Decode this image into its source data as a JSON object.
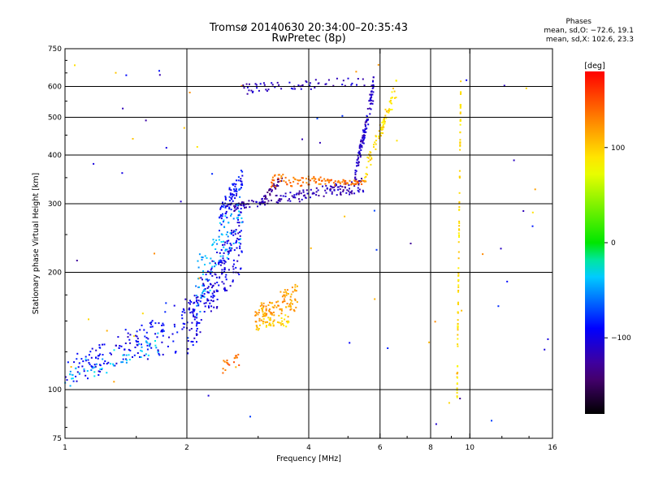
{
  "title_line1": "Tromsø 20140630 20:34:00–20:35:43",
  "title_line2": "RwPretec (8p)",
  "phase_box": {
    "title": "Phases",
    "line_o": "mean, sd,O: −72.6, 19.1",
    "line_x": "mean, sd,X: 102.6, 23.3"
  },
  "colorbar": {
    "unit": "[deg]",
    "min": -180,
    "max": 180,
    "ticks": [
      100,
      0,
      -100
    ],
    "tick_labels": [
      "100",
      "0",
      "−100"
    ]
  },
  "chart_data": {
    "type": "scatter",
    "xlabel": "Frequency [MHz]",
    "ylabel": "Stationary phase Virtual Height [km]",
    "xscale": "log",
    "yscale": "log",
    "xlim": [
      1,
      16
    ],
    "ylim": [
      75,
      750
    ],
    "x_ticks": [
      1,
      2,
      4,
      6,
      8,
      10,
      16
    ],
    "x_tick_labels": [
      "1",
      "2",
      "4",
      "6",
      "8",
      "10",
      "16"
    ],
    "y_ticks": [
      75,
      100,
      200,
      300,
      400,
      500,
      600,
      750
    ],
    "y_tick_labels": [
      "75",
      "100",
      "200",
      "300",
      "400",
      "500",
      "600",
      "750"
    ],
    "grid": true,
    "gridlines_x": [
      2,
      4,
      6,
      8,
      10
    ],
    "gridlines_y": [
      100,
      200,
      300,
      400,
      500,
      600
    ],
    "color_meaning": "phase in degrees",
    "clusters": [
      {
        "id": "o-low",
        "x_range": [
          1.0,
          2.0
        ],
        "y_start": [
          100,
          120
        ],
        "y_end": [
          125,
          175
        ],
        "phase": -95,
        "n": 160
      },
      {
        "id": "o-mid-a",
        "x_range": [
          2.0,
          2.75
        ],
        "y_start": [
          120,
          170
        ],
        "y_end": [
          200,
          300
        ],
        "phase": -100,
        "n": 240
      },
      {
        "id": "o-mid-b",
        "x_range": [
          2.4,
          2.75
        ],
        "y_start": [
          250,
          300
        ],
        "y_end": [
          330,
          375
        ],
        "phase": -90,
        "n": 80
      },
      {
        "id": "o-F-trace",
        "x_range": [
          2.5,
          5.5
        ],
        "y_start": [
          285,
          300
        ],
        "y_end": [
          320,
          350
        ],
        "phase": -118,
        "n": 170
      },
      {
        "id": "o-cusp",
        "x_range": [
          5.2,
          5.8
        ],
        "y_start": [
          330,
          370
        ],
        "y_end": [
          560,
          650
        ],
        "phase": -110,
        "n": 110
      },
      {
        "id": "o-top",
        "x_range": [
          2.7,
          5.7
        ],
        "y_start": [
          570,
          610
        ],
        "y_end": [
          600,
          640
        ],
        "phase": -112,
        "n": 60
      },
      {
        "id": "o-blob",
        "x_range": [
          3.1,
          3.45
        ],
        "y_start": [
          300,
          320
        ],
        "y_end": [
          340,
          360
        ],
        "phase": -135,
        "n": 35
      },
      {
        "id": "cyan-low",
        "x_range": [
          1.0,
          1.7
        ],
        "y_start": [
          100,
          115
        ],
        "y_end": [
          120,
          140
        ],
        "phase": -40,
        "n": 50
      },
      {
        "id": "cyan-patch",
        "x_range": [
          2.1,
          2.75
        ],
        "y_start": [
          150,
          220
        ],
        "y_end": [
          240,
          340
        ],
        "phase": -45,
        "n": 90
      },
      {
        "id": "x-blob-a",
        "x_range": [
          2.95,
          3.75
        ],
        "y_start": [
          145,
          165
        ],
        "y_end": [
          160,
          190
        ],
        "phase": 120,
        "n": 110
      },
      {
        "id": "x-blob-b",
        "x_range": [
          2.95,
          3.6
        ],
        "y_start": [
          140,
          150
        ],
        "y_end": [
          145,
          160
        ],
        "phase": 100,
        "n": 45
      },
      {
        "id": "x-lowblob",
        "x_range": [
          2.45,
          2.7
        ],
        "y_start": [
          110,
          120
        ],
        "y_end": [
          115,
          125
        ],
        "phase": 140,
        "n": 18
      },
      {
        "id": "x-F-trace",
        "x_range": [
          3.2,
          5.6
        ],
        "y_start": [
          330,
          360
        ],
        "y_end": [
          335,
          345
        ],
        "phase": 135,
        "n": 120
      },
      {
        "id": "x-cusp",
        "x_range": [
          5.5,
          6.6
        ],
        "y_start": [
          340,
          380
        ],
        "y_end": [
          560,
          630
        ],
        "phase": 95,
        "n": 80
      },
      {
        "id": "x-column",
        "x_range": [
          9.3,
          9.5
        ],
        "y_start": [
          90,
          110
        ],
        "y_end": [
          580,
          640
        ],
        "phase": 92,
        "n": 90
      },
      {
        "id": "noise",
        "x_range": [
          1.0,
          16.0
        ],
        "y_start": [
          75,
          120
        ],
        "y_end": [
          300,
          700
        ],
        "phase": 0,
        "n": 70
      }
    ]
  }
}
